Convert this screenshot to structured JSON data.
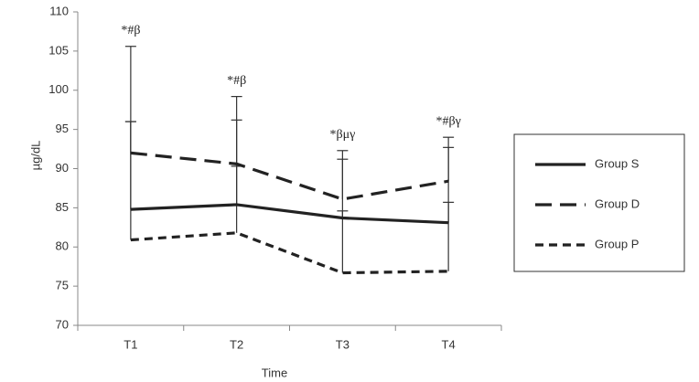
{
  "chart_data": {
    "type": "line",
    "x_label": "Time",
    "y_label": "µg/dL",
    "categories": [
      "T1",
      "T2",
      "T3",
      "T4"
    ],
    "annotations": [
      "*#β",
      "*#β",
      "*βμγ",
      "*#βγ"
    ],
    "series": [
      {
        "name": "Group S",
        "color": "#222222",
        "dash": "solid",
        "values": [
          84.8,
          85.4,
          83.7,
          83.1
        ],
        "errors": [
          11.2,
          10.8,
          7.5,
          9.6
        ]
      },
      {
        "name": "Group D",
        "color": "#222222",
        "dash": "long",
        "values": [
          92,
          90.6,
          86.1,
          88.4
        ],
        "errors": [
          13.6,
          8.6,
          6.2,
          5.6
        ]
      },
      {
        "name": "Group P",
        "color": "#222222",
        "dash": "short",
        "values": [
          80.9,
          81.8,
          76.7,
          76.9
        ],
        "errors": [
          15.1,
          8.5,
          7.9,
          8.8
        ]
      }
    ],
    "ylim": [
      70,
      110
    ],
    "yticks": [
      70,
      75,
      80,
      85,
      90,
      95,
      100,
      105,
      110
    ],
    "legend": "right"
  }
}
